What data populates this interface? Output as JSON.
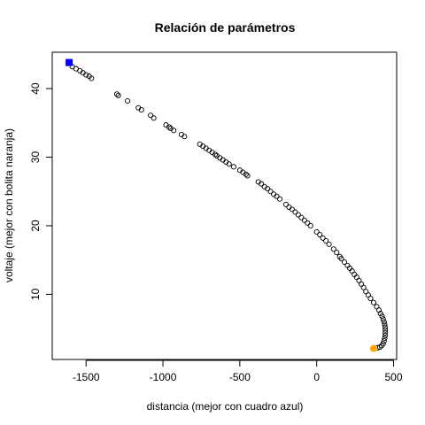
{
  "chart_data": {
    "type": "scatter",
    "title": "Relación de parámetros",
    "xlabel": "distancia (mejor con cuadro azul)",
    "ylabel": "voltaje (mejor con bolita naranja)",
    "xlim": [
      -1720,
      520
    ],
    "ylim": [
      0.5,
      45.3
    ],
    "xticks": [
      -1500,
      -1000,
      -500,
      0,
      500
    ],
    "yticks": [
      10,
      20,
      30,
      40
    ],
    "grid": false,
    "legend": "none",
    "point_color": "#000000",
    "points": [
      [
        -1590,
        43.2
      ],
      [
        -1565,
        42.9
      ],
      [
        -1540,
        42.6
      ],
      [
        -1520,
        42.3
      ],
      [
        -1500,
        42.0
      ],
      [
        -1480,
        41.8
      ],
      [
        -1465,
        41.5
      ],
      [
        -1300,
        39.2
      ],
      [
        -1290,
        39.0
      ],
      [
        -1230,
        38.2
      ],
      [
        -1160,
        37.2
      ],
      [
        -1140,
        36.9
      ],
      [
        -1080,
        36.1
      ],
      [
        -1060,
        35.7
      ],
      [
        -980,
        34.7
      ],
      [
        -960,
        34.4
      ],
      [
        -950,
        34.2
      ],
      [
        -930,
        33.9
      ],
      [
        -880,
        33.3
      ],
      [
        -860,
        33.0
      ],
      [
        -760,
        31.9
      ],
      [
        -740,
        31.6
      ],
      [
        -720,
        31.3
      ],
      [
        -700,
        31.0
      ],
      [
        -680,
        30.7
      ],
      [
        -660,
        30.4
      ],
      [
        -650,
        30.2
      ],
      [
        -630,
        29.9
      ],
      [
        -610,
        29.6
      ],
      [
        -590,
        29.3
      ],
      [
        -570,
        29.0
      ],
      [
        -540,
        28.6
      ],
      [
        -500,
        28.1
      ],
      [
        -480,
        27.8
      ],
      [
        -460,
        27.5
      ],
      [
        -450,
        27.3
      ],
      [
        -380,
        26.4
      ],
      [
        -360,
        26.1
      ],
      [
        -340,
        25.7
      ],
      [
        -320,
        25.4
      ],
      [
        -300,
        25.0
      ],
      [
        -280,
        24.6
      ],
      [
        -260,
        24.3
      ],
      [
        -240,
        23.9
      ],
      [
        -200,
        23.1
      ],
      [
        -180,
        22.7
      ],
      [
        -160,
        22.4
      ],
      [
        -140,
        22.0
      ],
      [
        -120,
        21.6
      ],
      [
        -100,
        21.2
      ],
      [
        -80,
        20.8
      ],
      [
        -60,
        20.4
      ],
      [
        -40,
        20.0
      ],
      [
        0,
        19.1
      ],
      [
        20,
        18.7
      ],
      [
        40,
        18.2
      ],
      [
        60,
        17.8
      ],
      [
        80,
        17.3
      ],
      [
        110,
        16.6
      ],
      [
        130,
        16.1
      ],
      [
        150,
        15.5
      ],
      [
        160,
        15.2
      ],
      [
        180,
        14.7
      ],
      [
        200,
        14.2
      ],
      [
        215,
        13.8
      ],
      [
        230,
        13.4
      ],
      [
        245,
        12.9
      ],
      [
        260,
        12.5
      ],
      [
        275,
        12.0
      ],
      [
        290,
        11.5
      ],
      [
        305,
        11.0
      ],
      [
        320,
        10.4
      ],
      [
        335,
        9.9
      ],
      [
        350,
        9.4
      ],
      [
        370,
        8.8
      ],
      [
        390,
        8.2
      ],
      [
        405,
        7.7
      ],
      [
        415,
        7.2
      ],
      [
        425,
        6.8
      ],
      [
        432,
        6.4
      ],
      [
        438,
        6.0
      ],
      [
        442,
        5.6
      ],
      [
        445,
        5.2
      ],
      [
        446,
        4.8
      ],
      [
        446,
        4.4
      ],
      [
        445,
        4.0
      ],
      [
        442,
        3.6
      ],
      [
        438,
        3.2
      ],
      [
        432,
        2.8
      ],
      [
        422,
        2.5
      ],
      [
        410,
        2.3
      ],
      [
        395,
        2.2
      ]
    ],
    "highlight_square": {
      "x": -1610,
      "y": 43.8,
      "color": "#0000FF"
    },
    "highlight_circle": {
      "x": 370,
      "y": 2.1,
      "color": "#FFA500"
    }
  }
}
